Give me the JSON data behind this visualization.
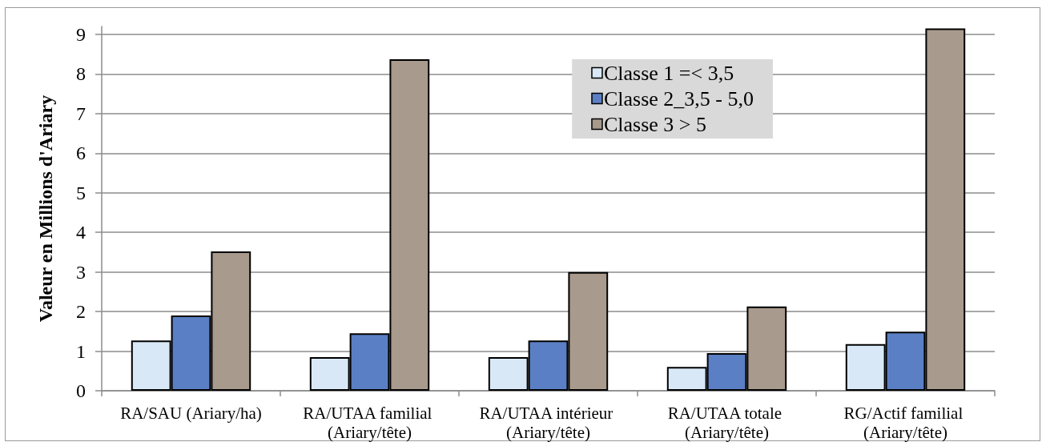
{
  "chart_data": {
    "type": "bar",
    "ylabel": "Valeur en Millions d'Ariary",
    "categories": [
      "RA/SAU (Ariary/ha)",
      "RA/UTAA familial (Ariary/tête)",
      "RA/UTAA intérieur (Ariary/tête)",
      "RA/UTAA totale (Ariary/tête)",
      "RG/Actif familial (Ariary/tête)"
    ],
    "series": [
      {
        "name": "Classe 1 =< 3,5",
        "color": "#d9e8f7",
        "values": [
          1.27,
          0.85,
          0.85,
          0.6,
          1.18
        ]
      },
      {
        "name": "Classe 2_3,5 - 5,0",
        "color": "#5b7fc4",
        "values": [
          1.9,
          1.45,
          1.27,
          0.95,
          1.49
        ]
      },
      {
        "name": "Classe 3 > 5",
        "color": "#a89a8c",
        "values": [
          3.52,
          8.37,
          3.0,
          2.13,
          9.15
        ]
      }
    ],
    "ylim": [
      0,
      9.2
    ],
    "yticks": [
      0,
      1,
      2,
      3,
      4,
      5,
      6,
      7,
      8,
      9
    ],
    "grid": "y",
    "legend": "top right"
  }
}
